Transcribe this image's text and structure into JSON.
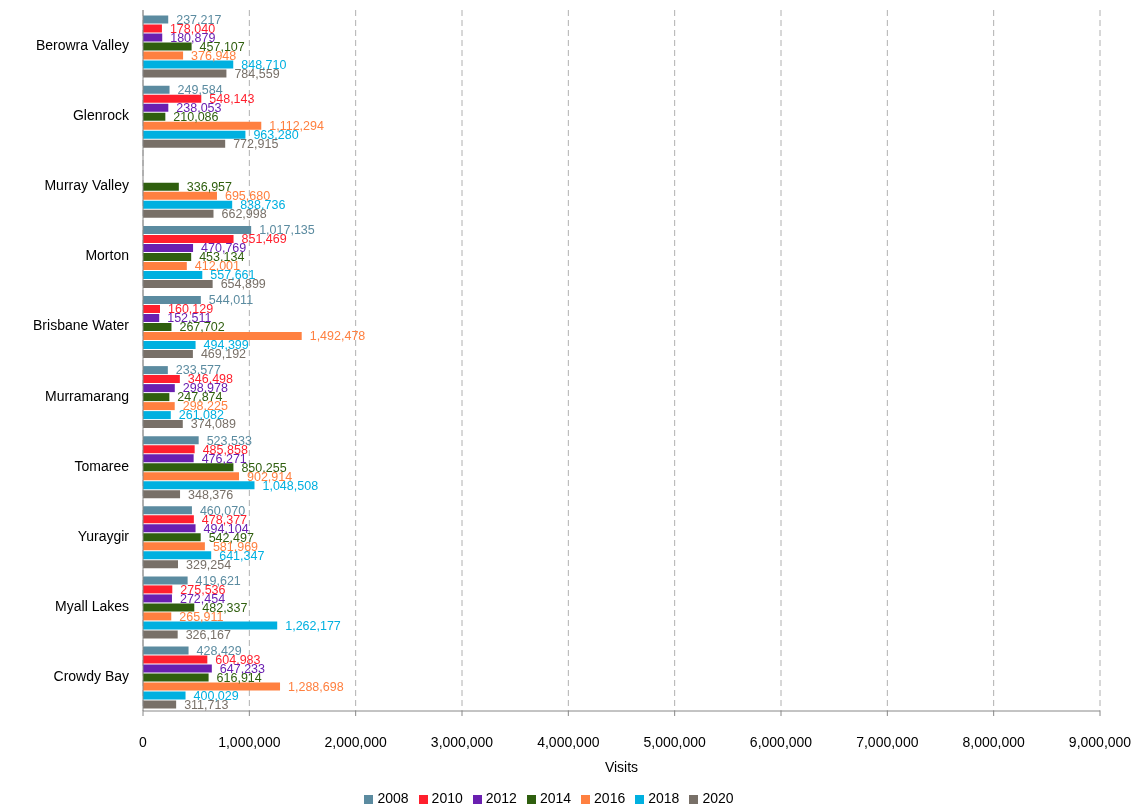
{
  "chart_data": {
    "type": "bar",
    "orientation": "horizontal",
    "xlabel": "Visits",
    "categories": [
      "Berowra Valley",
      "Glenrock",
      "Murray Valley",
      "Morton",
      "Brisbane Water",
      "Murramarang",
      "Tomaree",
      "Yuraygir",
      "Myall Lakes",
      "Crowdy Bay"
    ],
    "series": [
      {
        "name": "2008",
        "color": "#5b8ba0",
        "values": [
          237217,
          249584,
          null,
          1017135,
          544011,
          233577,
          523533,
          460070,
          419621,
          428429
        ],
        "value_labels": [
          "237,217",
          "249,584",
          null,
          "1,017,135",
          "544,011",
          "233,577",
          "523,533",
          "460,070",
          "419,621",
          "428,429"
        ]
      },
      {
        "name": "2010",
        "color": "#ff1f2d",
        "values": [
          178040,
          548143,
          null,
          851469,
          160129,
          346498,
          485858,
          478377,
          275536,
          604983
        ],
        "value_labels": [
          "178,040",
          "548,143",
          null,
          "851,469",
          "160,129",
          "346,498",
          "485,858",
          "478,377",
          "275,536",
          "604,983"
        ]
      },
      {
        "name": "2012",
        "color": "#6a1fb0",
        "values": [
          180879,
          238053,
          null,
          470769,
          152511,
          298978,
          476271,
          494104,
          272454,
          647233
        ],
        "value_labels": [
          "180,879",
          "238,053",
          null,
          "470,769",
          "152,511",
          "298,978",
          "476,271",
          "494,104",
          "272,454",
          "647,233"
        ]
      },
      {
        "name": "2014",
        "color": "#2f5f0e",
        "values": [
          457107,
          210086,
          336957,
          453134,
          267702,
          247874,
          850255,
          542497,
          482337,
          616914
        ],
        "value_labels": [
          "457,107",
          "210,086",
          "336,957",
          "453,134",
          "267,702",
          "247,874",
          "850,255",
          "542,497",
          "482,337",
          "616,914"
        ]
      },
      {
        "name": "2016",
        "color": "#ff8040",
        "values": [
          376948,
          1112294,
          695680,
          412001,
          1492478,
          298225,
          902914,
          581969,
          265911,
          1288698
        ],
        "value_labels": [
          "376,948",
          "1,112,294",
          "695,680",
          "412,001",
          "1,492,478",
          "298,225",
          "902,914",
          "581,969",
          "265,911",
          "1,288,698"
        ]
      },
      {
        "name": "2018",
        "color": "#00b0e0",
        "values": [
          848710,
          963280,
          838736,
          557661,
          494399,
          261082,
          1048508,
          641347,
          1262177,
          400029
        ],
        "value_labels": [
          "848,710",
          "963,280",
          "838,736",
          "557,661",
          "494,399",
          "261,082",
          "1,048,508",
          "641,347",
          "1,262,177",
          "400,029"
        ]
      },
      {
        "name": "2020",
        "color": "#787068",
        "values": [
          784559,
          772915,
          662998,
          654899,
          469192,
          374089,
          348376,
          329254,
          326167,
          311713
        ],
        "value_labels": [
          "784,559",
          "772,915",
          "662,998",
          "654,899",
          "469,192",
          "374,089",
          "348,376",
          "329,254",
          "326,167",
          "311,713"
        ]
      }
    ],
    "xlim": [
      0,
      9000000
    ],
    "xticks": [
      {
        "value": 0,
        "label": "0"
      },
      {
        "value": 1000000,
        "label": "1,000,000"
      },
      {
        "value": 2000000,
        "label": "2,000,000"
      },
      {
        "value": 3000000,
        "label": "3,000,000"
      },
      {
        "value": 4000000,
        "label": "4,000,000"
      },
      {
        "value": 5000000,
        "label": "5,000,000"
      },
      {
        "value": 6000000,
        "label": "6,000,000"
      },
      {
        "value": 7000000,
        "label": "7,000,000"
      },
      {
        "value": 8000000,
        "label": "8,000,000"
      },
      {
        "value": 9000000,
        "label": "9,000,000"
      }
    ],
    "grid": "x",
    "legend": "bottom"
  }
}
